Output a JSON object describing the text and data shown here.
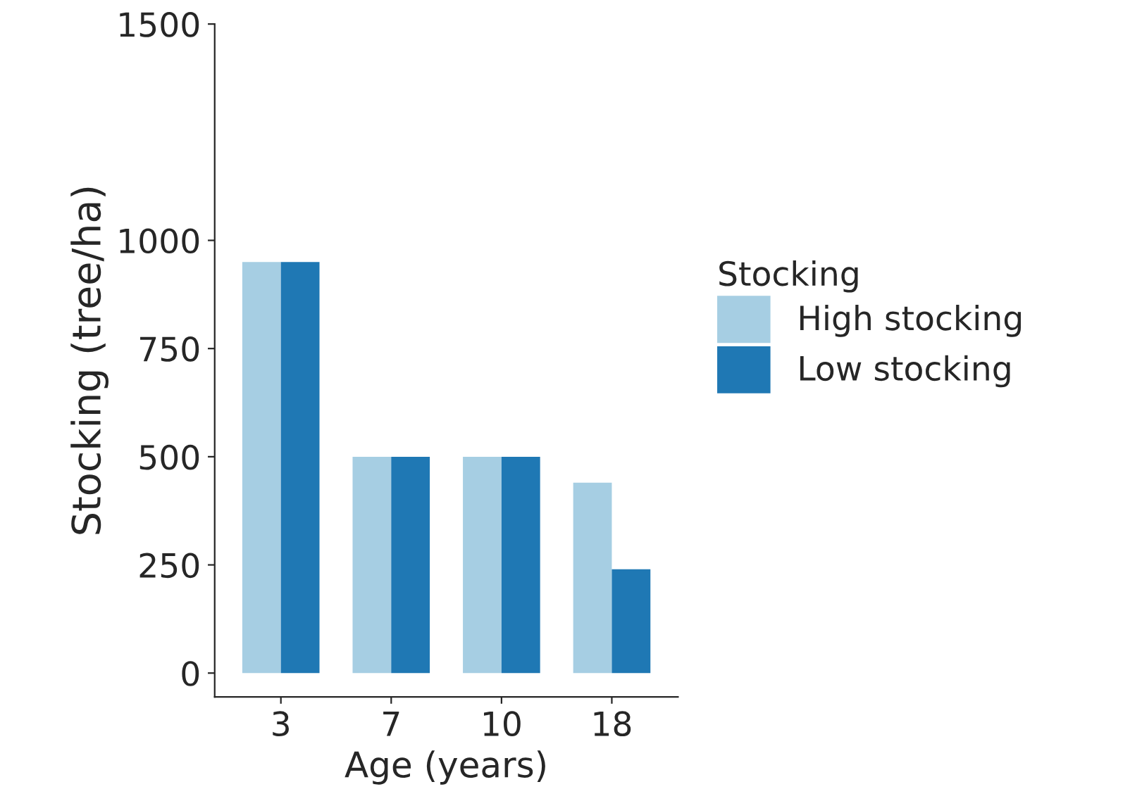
{
  "chart_data": {
    "type": "bar",
    "xlabel": "Age (years)",
    "ylabel": "Stocking (tree/ha)",
    "legend_title": "Stocking",
    "categories": [
      "3",
      "7",
      "10",
      "18"
    ],
    "series": [
      {
        "name": "High stocking",
        "color": "#a6cee3",
        "values": [
          950,
          500,
          500,
          440
        ]
      },
      {
        "name": "Low stocking",
        "color": "#1f78b4",
        "values": [
          950,
          500,
          500,
          240
        ]
      }
    ],
    "ylim": [
      -55,
      1500
    ],
    "yticks": [
      0,
      250,
      500,
      750,
      1000,
      1500
    ],
    "grid": false,
    "legend": "right"
  }
}
